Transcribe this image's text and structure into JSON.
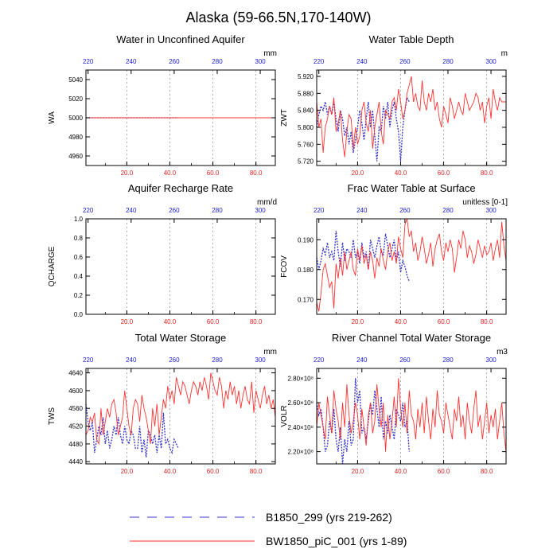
{
  "title": "Alaska (59-66.5N,170-140W)",
  "colors": {
    "series_a": "#3333cc",
    "series_b": "#ff3333",
    "top_ticks": "#1a1acc",
    "bottom_ticks": "#dd2222",
    "grid": "#999999"
  },
  "legend": [
    {
      "label": "B1850_299 (yrs 219-262)",
      "style": "dashed",
      "color": "#3333cc"
    },
    {
      "label": "BW1850_piC_001 (yrs 1-89)",
      "style": "solid",
      "color": "#ff3333"
    }
  ],
  "chart_data": [
    {
      "type": "line",
      "title": "Water in Unconfined Aquifer",
      "ylabel": "WA",
      "units": "mm",
      "ylim": [
        4950,
        5050
      ],
      "yticks": [
        "4960",
        "4980",
        "5000",
        "5020",
        "5040"
      ],
      "bottom_axis": {
        "range": [
          1,
          89
        ],
        "ticks": [
          "20.0",
          "40.0",
          "60.0",
          "80.0"
        ]
      },
      "top_axis": {
        "range": [
          219,
          307
        ],
        "ticks": [
          "220",
          "240",
          "260",
          "280",
          "300"
        ]
      },
      "series": [
        {
          "name": "B1850_299 (yrs 219-262)",
          "axis": "top",
          "x_start": 219,
          "values": [
            5000,
            5000,
            5000,
            5000,
            5000,
            5000,
            5000,
            5000,
            5000,
            5000,
            5000,
            5000,
            5000,
            5000,
            5000,
            5000,
            5000,
            5000,
            5000,
            5000,
            5000,
            5000,
            5000,
            5000,
            5000,
            5000,
            5000,
            5000,
            5000,
            5000,
            5000,
            5000,
            5000,
            5000,
            5000,
            5000,
            5000,
            5000,
            5000,
            5000,
            5000,
            5000,
            5000,
            5000
          ]
        },
        {
          "name": "BW1850_piC_001 (yrs 1-89)",
          "axis": "bottom",
          "x_start": 1,
          "values": [
            5000,
            5000,
            5000,
            5000,
            5000,
            5000,
            5000,
            5000,
            5000,
            5000,
            5000,
            5000,
            5000,
            5000,
            5000,
            5000,
            5000,
            5000,
            5000,
            5000,
            5000,
            5000,
            5000,
            5000,
            5000,
            5000,
            5000,
            5000,
            5000,
            5000,
            5000,
            5000,
            5000,
            5000,
            5000,
            5000,
            5000,
            5000,
            5000,
            5000,
            5000,
            5000,
            5000,
            5000,
            5000,
            5000,
            5000,
            5000,
            5000,
            5000,
            5000,
            5000,
            5000,
            5000,
            5000,
            5000,
            5000,
            5000,
            5000,
            5000,
            5000,
            5000,
            5000,
            5000,
            5000,
            5000,
            5000,
            5000,
            5000,
            5000,
            5000,
            5000,
            5000,
            5000,
            5000,
            5000,
            5000,
            5000,
            5000,
            5000,
            5000,
            5000,
            5000,
            5000,
            5000,
            5000,
            5000,
            5000,
            5000
          ]
        }
      ]
    },
    {
      "type": "line",
      "title": "Water Table Depth",
      "ylabel": "ZWT",
      "units": "m",
      "ylim": [
        5.71,
        5.935
      ],
      "yticks": [
        "5.720",
        "5.760",
        "5.800",
        "5.840",
        "5.880",
        "5.920"
      ],
      "bottom_axis": {
        "range": [
          1,
          89
        ],
        "ticks": [
          "20.0",
          "40.0",
          "60.0",
          "80.0"
        ]
      },
      "top_axis": {
        "range": [
          219,
          307
        ],
        "ticks": [
          "220",
          "240",
          "260",
          "280",
          "300"
        ]
      },
      "series": [
        {
          "name": "B1850_299 (yrs 219-262)",
          "axis": "top",
          "x_start": 219,
          "values": [
            5.8,
            5.83,
            5.85,
            5.84,
            5.86,
            5.83,
            5.85,
            5.83,
            5.86,
            5.82,
            5.79,
            5.84,
            5.82,
            5.78,
            5.8,
            5.76,
            5.79,
            5.74,
            5.77,
            5.8,
            5.84,
            5.81,
            5.77,
            5.82,
            5.86,
            5.8,
            5.84,
            5.78,
            5.72,
            5.8,
            5.79,
            5.85,
            5.82,
            5.86,
            5.8,
            5.84,
            5.86,
            5.82,
            5.79,
            5.72,
            5.8,
            5.84,
            5.87,
            5.86
          ]
        },
        {
          "name": "BW1850_piC_001 (yrs 1-89)",
          "axis": "bottom",
          "x_start": 1,
          "values": [
            5.86,
            5.8,
            5.82,
            5.74,
            5.8,
            5.82,
            5.85,
            5.83,
            5.87,
            5.79,
            5.81,
            5.84,
            5.77,
            5.73,
            5.79,
            5.83,
            5.82,
            5.75,
            5.8,
            5.76,
            5.78,
            5.84,
            5.86,
            5.81,
            5.79,
            5.84,
            5.75,
            5.8,
            5.83,
            5.86,
            5.79,
            5.76,
            5.84,
            5.83,
            5.82,
            5.86,
            5.87,
            5.84,
            5.89,
            5.86,
            5.82,
            5.84,
            5.88,
            5.9,
            5.92,
            5.86,
            5.88,
            5.85,
            5.84,
            5.91,
            5.86,
            5.84,
            5.88,
            5.86,
            5.89,
            5.84,
            5.86,
            5.82,
            5.8,
            5.85,
            5.83,
            5.81,
            5.87,
            5.85,
            5.82,
            5.84,
            5.86,
            5.84,
            5.83,
            5.88,
            5.86,
            5.84,
            5.85,
            5.86,
            5.88,
            5.87,
            5.84,
            5.86,
            5.81,
            5.85,
            5.87,
            5.82,
            5.89,
            5.86,
            5.84,
            5.87,
            5.86,
            5.86,
            5.86
          ]
        }
      ]
    },
    {
      "type": "line",
      "title": "Aquifer Recharge Rate",
      "ylabel": "QCHARGE",
      "units": "mm/d",
      "ylim": [
        0,
        1
      ],
      "yticks": [
        "0.0",
        "0.2",
        "0.4",
        "0.6",
        "0.8",
        "1.0"
      ],
      "bottom_axis": {
        "range": [
          1,
          89
        ],
        "ticks": [
          "20.0",
          "40.0",
          "60.0",
          "80.0"
        ]
      },
      "top_axis": {
        "range": [
          219,
          307
        ],
        "ticks": [
          "220",
          "240",
          "260",
          "280",
          "300"
        ]
      },
      "series": []
    },
    {
      "type": "line",
      "title": "Frac Water Table at Surface",
      "ylabel": "FCOV",
      "units": "unitless [0-1]",
      "ylim": [
        0.165,
        0.197
      ],
      "yticks": [
        "0.170",
        "0.180",
        "0.190"
      ],
      "bottom_axis": {
        "range": [
          1,
          89
        ],
        "ticks": [
          "20.0",
          "40.0",
          "60.0",
          "80.0"
        ]
      },
      "top_axis": {
        "range": [
          219,
          307
        ],
        "ticks": [
          "220",
          "240",
          "260",
          "280",
          "300"
        ]
      },
      "series": [
        {
          "name": "B1850_299 (yrs 219-262)",
          "axis": "top",
          "x_start": 219,
          "values": [
            0.184,
            0.18,
            0.183,
            0.187,
            0.185,
            0.189,
            0.184,
            0.186,
            0.183,
            0.193,
            0.186,
            0.181,
            0.189,
            0.183,
            0.187,
            0.186,
            0.184,
            0.19,
            0.184,
            0.186,
            0.182,
            0.189,
            0.184,
            0.186,
            0.18,
            0.19,
            0.187,
            0.184,
            0.188,
            0.191,
            0.186,
            0.185,
            0.192,
            0.188,
            0.184,
            0.187,
            0.19,
            0.183,
            0.186,
            0.179,
            0.183,
            0.181,
            0.178,
            0.176
          ]
        },
        {
          "name": "BW1850_piC_001 (yrs 1-89)",
          "axis": "bottom",
          "x_start": 1,
          "values": [
            0.169,
            0.166,
            0.172,
            0.18,
            0.182,
            0.178,
            0.174,
            0.176,
            0.167,
            0.182,
            0.177,
            0.184,
            0.178,
            0.186,
            0.18,
            0.183,
            0.186,
            0.18,
            0.178,
            0.187,
            0.183,
            0.188,
            0.182,
            0.185,
            0.18,
            0.186,
            0.183,
            0.177,
            0.184,
            0.181,
            0.187,
            0.183,
            0.18,
            0.186,
            0.189,
            0.183,
            0.186,
            0.182,
            0.191,
            0.187,
            0.184,
            0.195,
            0.197,
            0.191,
            0.193,
            0.186,
            0.189,
            0.183,
            0.186,
            0.191,
            0.187,
            0.182,
            0.185,
            0.189,
            0.181,
            0.187,
            0.19,
            0.192,
            0.186,
            0.183,
            0.189,
            0.186,
            0.19,
            0.187,
            0.179,
            0.184,
            0.19,
            0.187,
            0.193,
            0.19,
            0.184,
            0.188,
            0.186,
            0.182,
            0.185,
            0.19,
            0.187,
            0.184,
            0.188,
            0.185,
            0.186,
            0.189,
            0.183,
            0.187,
            0.19,
            0.184,
            0.196,
            0.188,
            0.183
          ]
        }
      ]
    },
    {
      "type": "line",
      "title": "Total Water Storage",
      "ylabel": "TWS",
      "units": "mm",
      "ylim": [
        4435,
        4650
      ],
      "yticks": [
        "4440",
        "4480",
        "4520",
        "4560",
        "4600",
        "4640"
      ],
      "bottom_axis": {
        "range": [
          1,
          89
        ],
        "ticks": [
          "20.0",
          "40.0",
          "60.0",
          "80.0"
        ]
      },
      "top_axis": {
        "range": [
          219,
          307
        ],
        "ticks": [
          "220",
          "240",
          "260",
          "280",
          "300"
        ]
      },
      "series": [
        {
          "name": "B1850_299 (yrs 219-262)",
          "axis": "top",
          "x_start": 219,
          "values": [
            4570,
            4530,
            4510,
            4530,
            4460,
            4490,
            4520,
            4500,
            4540,
            4480,
            4510,
            4470,
            4490,
            4520,
            4500,
            4540,
            4500,
            4480,
            4520,
            4490,
            4480,
            4510,
            4500,
            4470,
            4470,
            4520,
            4460,
            4490,
            4450,
            4510,
            4500,
            4480,
            4500,
            4460,
            4500,
            4470,
            4550,
            4480,
            4490,
            4470,
            4460,
            4490,
            4480,
            4470
          ]
        },
        {
          "name": "BW1850_piC_001 (yrs 1-89)",
          "axis": "bottom",
          "x_start": 1,
          "values": [
            4500,
            4510,
            4540,
            4530,
            4550,
            4490,
            4480,
            4560,
            4500,
            4530,
            4560,
            4540,
            4570,
            4580,
            4550,
            4500,
            4520,
            4540,
            4600,
            4560,
            4520,
            4500,
            4560,
            4580,
            4570,
            4530,
            4590,
            4560,
            4540,
            4510,
            4480,
            4560,
            4520,
            4570,
            4500,
            4540,
            4580,
            4560,
            4610,
            4580,
            4600,
            4570,
            4630,
            4610,
            4590,
            4620,
            4610,
            4590,
            4570,
            4600,
            4620,
            4610,
            4590,
            4620,
            4600,
            4630,
            4610,
            4580,
            4640,
            4620,
            4600,
            4590,
            4630,
            4610,
            4560,
            4600,
            4580,
            4620,
            4590,
            4610,
            4570,
            4600,
            4560,
            4590,
            4610,
            4580,
            4570,
            4620,
            4550,
            4600,
            4580,
            4560,
            4590,
            4610,
            4570,
            4590,
            4560,
            4580,
            4540
          ]
        }
      ]
    },
    {
      "type": "line",
      "title": "River Channel Total Water Storage",
      "ylabel": "VOLR",
      "units": "m3",
      "ylim": [
        210000000.0,
        288000000.0
      ],
      "yticks": [
        "2.20×10⁸",
        "2.40×10⁸",
        "2.60×10⁸",
        "2.80×10⁸"
      ],
      "bottom_axis": {
        "range": [
          1,
          89
        ],
        "ticks": [
          "20.0",
          "40.0",
          "60.0",
          "80.0"
        ]
      },
      "top_axis": {
        "range": [
          219,
          307
        ],
        "ticks": [
          "220",
          "240",
          "260",
          "280",
          "300"
        ]
      },
      "series": [
        {
          "name": "B1850_299 (yrs 219-262)",
          "axis": "top",
          "x_start": 219,
          "values": [
            260000000.0,
            250000000.0,
            255000000.0,
            240000000.0,
            220000000.0,
            225000000.0,
            245000000.0,
            235000000.0,
            255000000.0,
            230000000.0,
            220000000.0,
            240000000.0,
            210000000.0,
            230000000.0,
            220000000.0,
            245000000.0,
            225000000.0,
            230000000.0,
            280000000.0,
            260000000.0,
            270000000.0,
            235000000.0,
            240000000.0,
            230000000.0,
            245000000.0,
            260000000.0,
            250000000.0,
            270000000.0,
            255000000.0,
            240000000.0,
            265000000.0,
            230000000.0,
            245000000.0,
            235000000.0,
            250000000.0,
            240000000.0,
            230000000.0,
            255000000.0,
            250000000.0,
            245000000.0,
            260000000.0,
            240000000.0,
            245000000.0,
            220000000.0
          ]
        },
        {
          "name": "BW1850_piC_001 (yrs 1-89)",
          "axis": "bottom",
          "x_start": 1,
          "values": [
            240000000.0,
            260000000.0,
            250000000.0,
            240000000.0,
            230000000.0,
            265000000.0,
            250000000.0,
            235000000.0,
            270000000.0,
            255000000.0,
            245000000.0,
            230000000.0,
            260000000.0,
            240000000.0,
            275000000.0,
            250000000.0,
            235000000.0,
            245000000.0,
            260000000.0,
            250000000.0,
            230000000.0,
            255000000.0,
            240000000.0,
            225000000.0,
            250000000.0,
            260000000.0,
            235000000.0,
            245000000.0,
            275000000.0,
            255000000.0,
            240000000.0,
            260000000.0,
            220000000.0,
            250000000.0,
            230000000.0,
            245000000.0,
            265000000.0,
            240000000.0,
            280000000.0,
            255000000.0,
            240000000.0,
            260000000.0,
            235000000.0,
            270000000.0,
            250000000.0,
            245000000.0,
            230000000.0,
            255000000.0,
            240000000.0,
            260000000.0,
            235000000.0,
            265000000.0,
            245000000.0,
            230000000.0,
            255000000.0,
            240000000.0,
            270000000.0,
            250000000.0,
            245000000.0,
            235000000.0,
            260000000.0,
            250000000.0,
            240000000.0,
            230000000.0,
            255000000.0,
            245000000.0,
            265000000.0,
            240000000.0,
            250000000.0,
            230000000.0,
            260000000.0,
            245000000.0,
            235000000.0,
            255000000.0,
            270000000.0,
            240000000.0,
            250000000.0,
            230000000.0,
            245000000.0,
            260000000.0,
            235000000.0,
            250000000.0,
            240000000.0,
            255000000.0,
            230000000.0,
            245000000.0,
            260000000.0,
            235000000.0,
            220000000.0
          ]
        }
      ]
    }
  ]
}
